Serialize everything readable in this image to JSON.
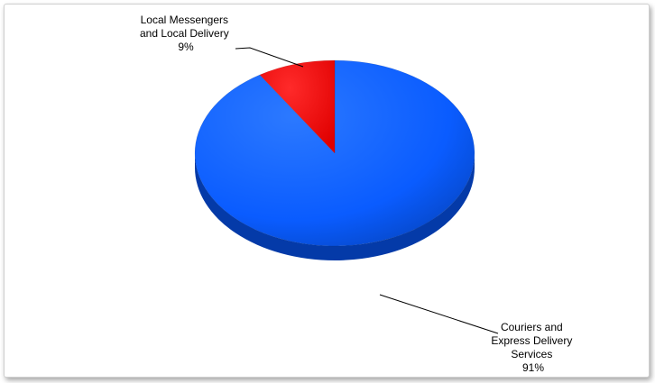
{
  "chart_data": {
    "type": "pie",
    "title": "",
    "slices": [
      {
        "label_lines": [
          "Couriers and",
          "Express Delivery",
          "Services"
        ],
        "percent_label": "91%",
        "value": 91,
        "color": "#0a5cff"
      },
      {
        "label_lines": [
          "Local Messengers",
          "and Local Delivery"
        ],
        "percent_label": "9%",
        "value": 9,
        "color": "#ff0000"
      }
    ],
    "legend": "none"
  }
}
